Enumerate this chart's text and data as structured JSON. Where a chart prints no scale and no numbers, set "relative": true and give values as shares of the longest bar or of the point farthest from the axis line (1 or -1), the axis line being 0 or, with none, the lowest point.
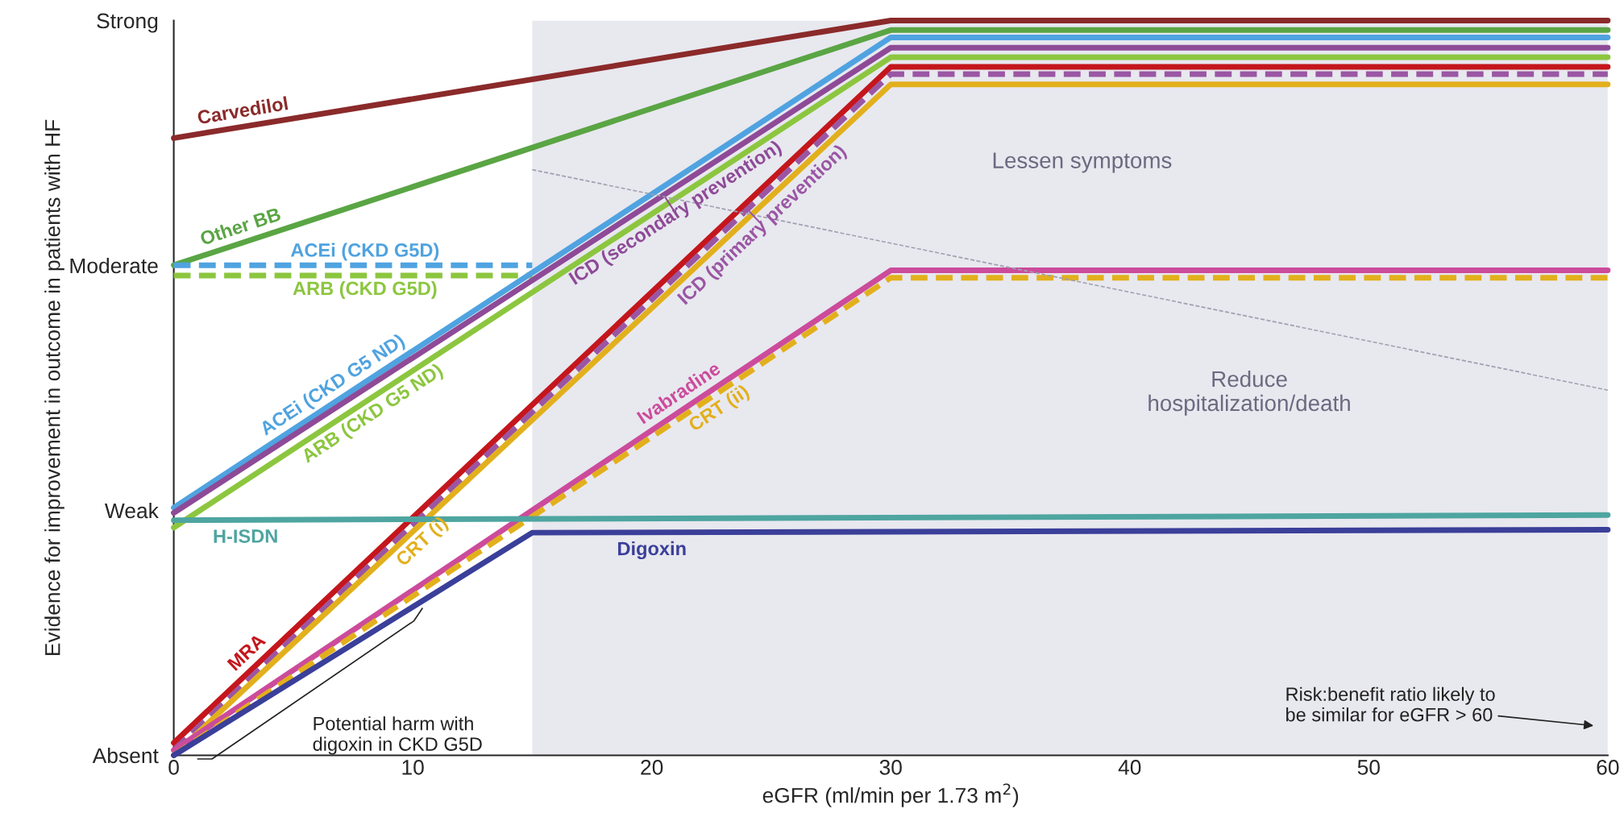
{
  "chart_data": {
    "type": "line",
    "relative": true,
    "xlabel": "eGFR (ml/min per 1.73 m$^{2}$)",
    "ylabel": "Evidence for improvement in outcome in patients with HF",
    "xlim": [
      0,
      60
    ],
    "xticks": [
      0,
      10,
      20,
      30,
      40,
      50,
      60
    ],
    "grid": false,
    "marker": "none",
    "bands": [
      {
        "axis": "x",
        "from": 15,
        "to": 60,
        "color": "#e8e8ef"
      }
    ],
    "series": [
      {
        "name": "Carvedilol",
        "color": "#8b2a2a",
        "x": [
          0,
          30,
          60
        ],
        "values": [
          0.84,
          1.0,
          1.0
        ]
      },
      {
        "name": "Other BB",
        "color": "#5aa544",
        "x": [
          0,
          30,
          60
        ],
        "values": [
          0.667,
          0.987,
          0.987
        ]
      },
      {
        "name": "ACEi (CKD G5D)",
        "color": "#4fa3e0",
        "x": [
          0,
          15
        ],
        "values": [
          0.667,
          0.667
        ],
        "line_style": "dashed"
      },
      {
        "name": "ARB (CKD G5D)",
        "color": "#8cc63f",
        "x": [
          0,
          15
        ],
        "values": [
          0.653,
          0.653
        ],
        "line_style": "dashed"
      },
      {
        "name": "ACEi (CKD G5 ND)",
        "color": "#4fa3e0",
        "x": [
          0,
          30,
          60
        ],
        "values": [
          0.337,
          0.977,
          0.977
        ]
      },
      {
        "name": "ICD (secondary prevention)",
        "color": "#8e4a97",
        "x": [
          0,
          30,
          60
        ],
        "values": [
          0.33,
          0.963,
          0.963
        ]
      },
      {
        "name": "ARB (CKD G5 ND)",
        "color": "#8cc63f",
        "x": [
          0,
          30,
          60
        ],
        "values": [
          0.31,
          0.95,
          0.95
        ]
      },
      {
        "name": "MRA",
        "color": "#c4161c",
        "x": [
          0,
          30,
          60
        ],
        "values": [
          0.017,
          0.937,
          0.937
        ]
      },
      {
        "name": "ICD (primary prevention)",
        "color": "#9a56a3",
        "x": [
          0,
          30,
          60
        ],
        "values": [
          0.007,
          0.927,
          0.927
        ],
        "line_style": "dashed"
      },
      {
        "name": "CRT (i)",
        "color": "#e2b01c",
        "x": [
          0,
          30,
          60
        ],
        "values": [
          0.0,
          0.913,
          0.913
        ]
      },
      {
        "name": "Ivabradine",
        "color": "#cc4b9b",
        "x": [
          0,
          30,
          60
        ],
        "values": [
          0.007,
          0.66,
          0.66
        ]
      },
      {
        "name": "CRT (ii)",
        "color": "#e2b01c",
        "x": [
          0,
          30,
          60
        ],
        "values": [
          0.0,
          0.65,
          0.65
        ],
        "line_style": "dashed"
      },
      {
        "name": "H-ISDN",
        "color": "#4ea5a0",
        "x": [
          0,
          60
        ],
        "values": [
          0.32,
          0.327
        ]
      },
      {
        "name": "Digoxin",
        "color": "#3a3f99",
        "x": [
          0,
          15,
          60
        ],
        "values": [
          0.0,
          0.303,
          0.307
        ]
      },
      {
        "color": "#a0a0b0",
        "x": [
          15,
          60
        ],
        "values": [
          0.797,
          0.497
        ],
        "line_style": "dashed"
      }
    ],
    "annotations": [
      "Absent",
      "Weak",
      "Moderate",
      "Strong",
      "Lessen symptoms",
      "Reduce\nhospitalization/death",
      "Potential harm with\ndigoxin in CKD G5D",
      "Risk:benefit ratio likely to\nbe similar for eGFR > 60"
    ]
  }
}
